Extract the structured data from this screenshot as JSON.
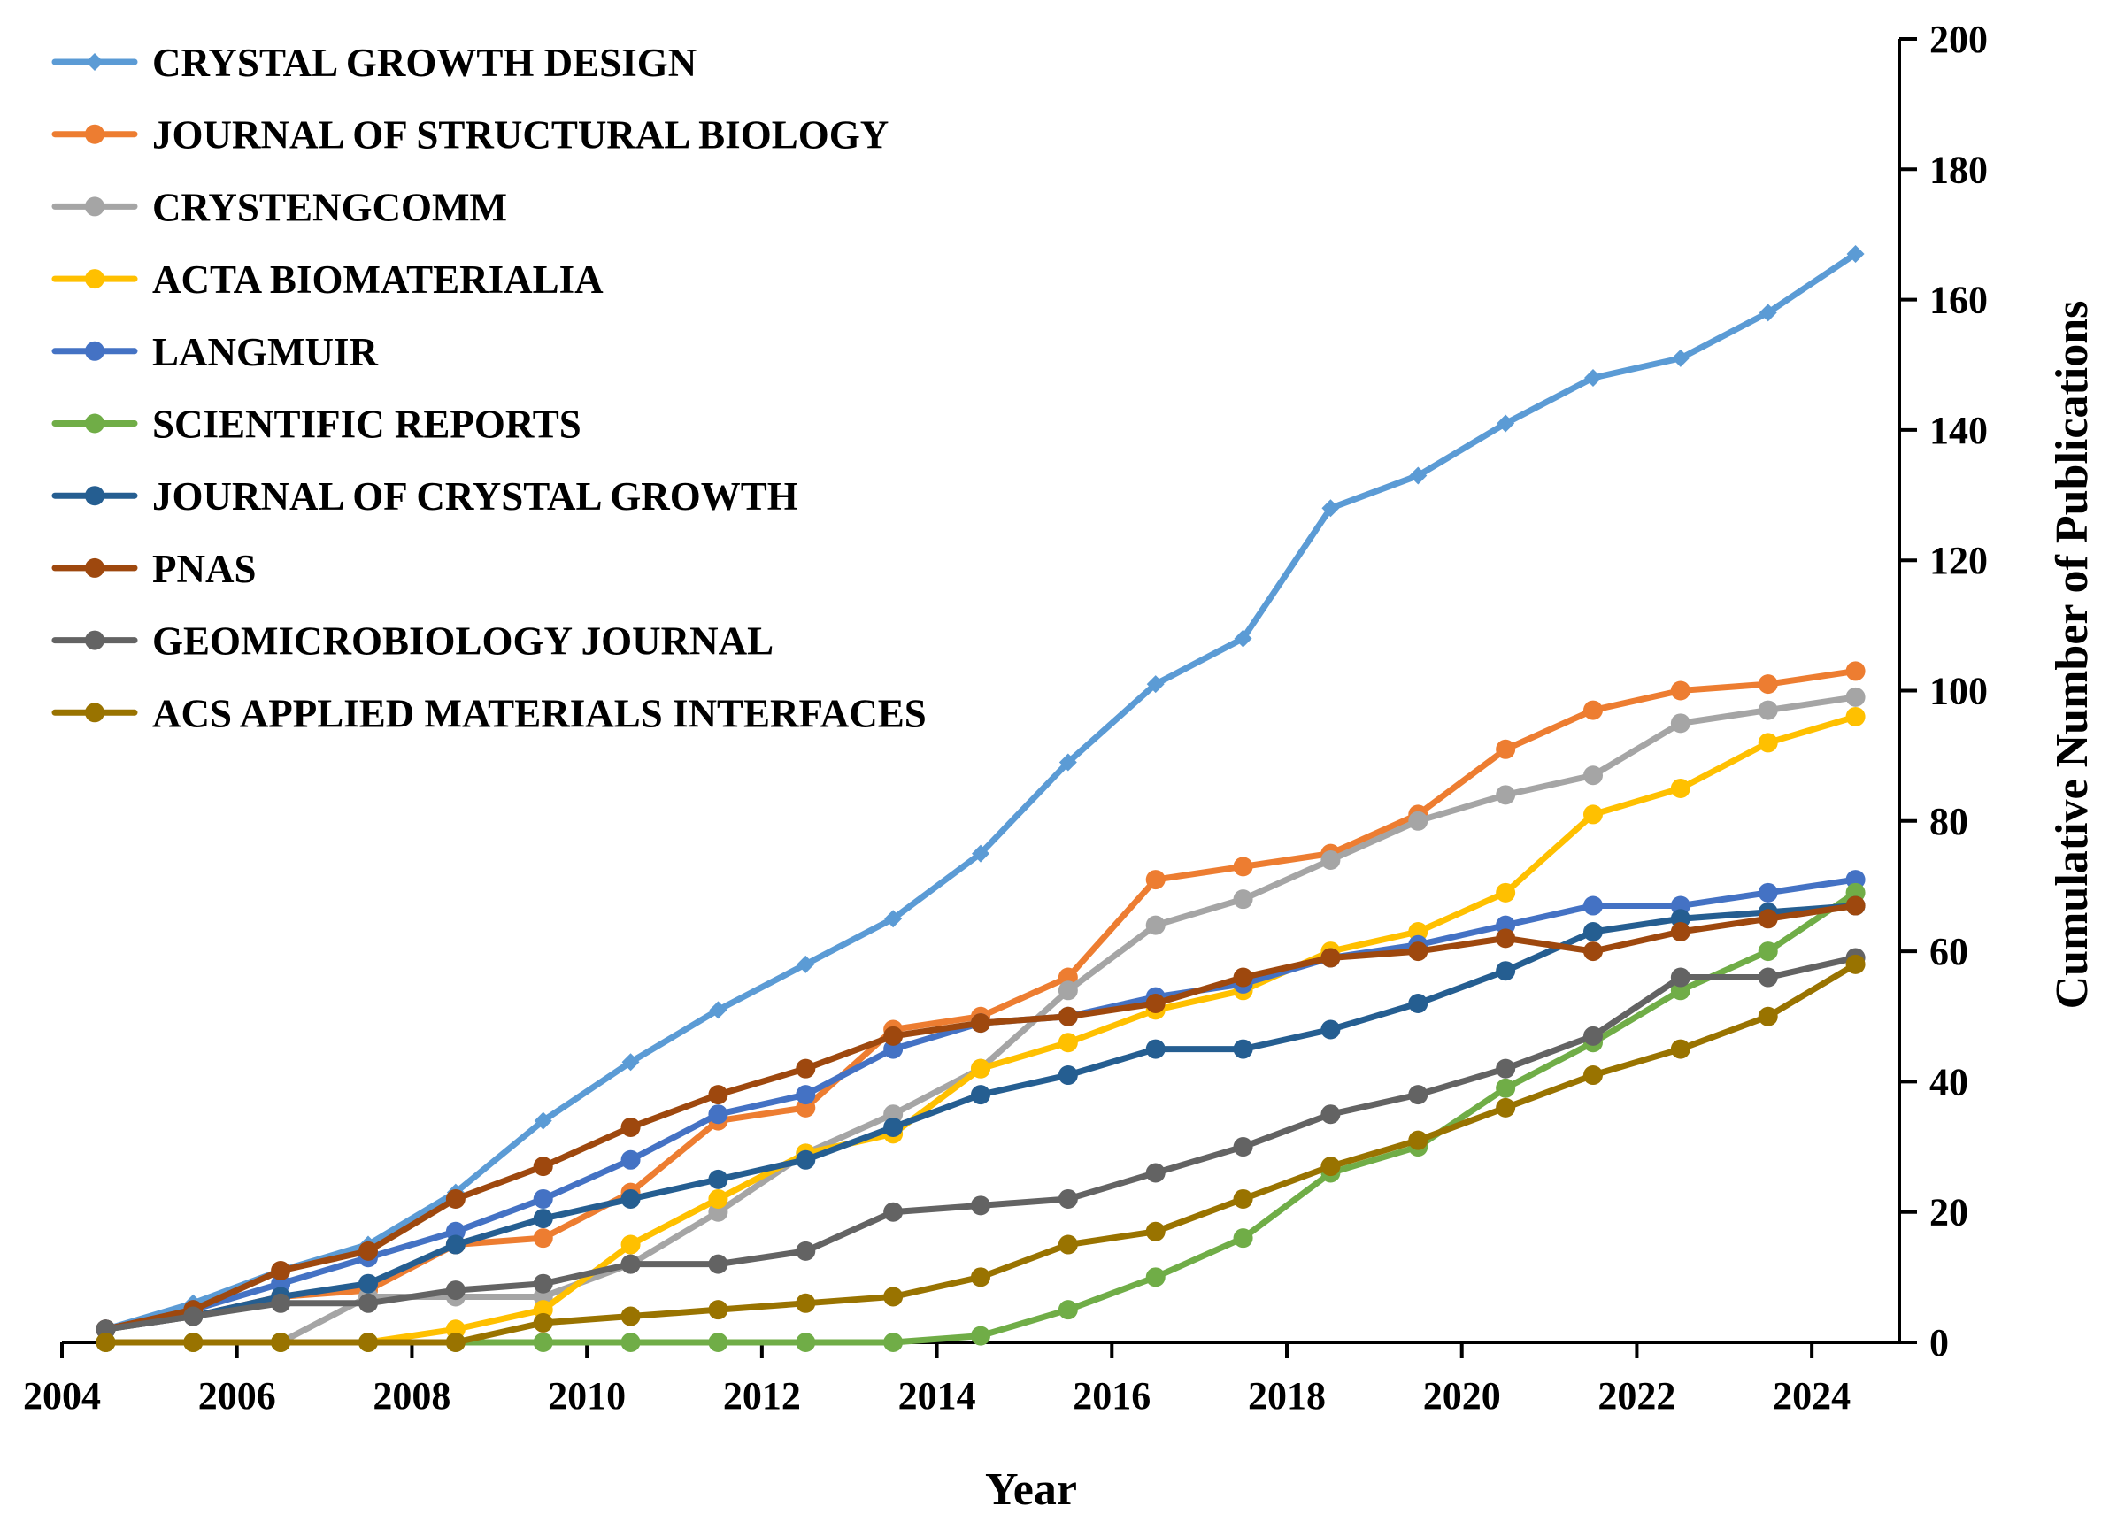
{
  "chart_data": {
    "type": "line",
    "title": "",
    "xlabel": "Year",
    "ylabel": "Cumulative Number of Publications",
    "y_axis_side": "right",
    "ylim": [
      0,
      200
    ],
    "yticks": [
      0,
      20,
      40,
      60,
      80,
      100,
      120,
      140,
      160,
      180,
      200
    ],
    "x_tick_labels": [
      "2004",
      "2006",
      "2008",
      "2010",
      "2012",
      "2014",
      "2016",
      "2018",
      "2020",
      "2022",
      "2024"
    ],
    "grid": false,
    "legend_position": "top-left",
    "x": [
      2004,
      2005,
      2006,
      2007,
      2008,
      2009,
      2010,
      2011,
      2012,
      2013,
      2014,
      2015,
      2016,
      2017,
      2018,
      2019,
      2020,
      2021,
      2022,
      2023,
      2024
    ],
    "series": [
      {
        "name": "CRYSTAL GROWTH DESIGN",
        "color": "#5B9BD5",
        "marker": "diamond",
        "values": [
          2,
          6,
          11,
          15,
          23,
          34,
          43,
          51,
          58,
          65,
          75,
          89,
          101,
          108,
          128,
          133,
          141,
          148,
          151,
          158,
          167
        ]
      },
      {
        "name": "JOURNAL OF STRUCTURAL BIOLOGY",
        "color": "#ED7D31",
        "marker": "circle",
        "values": [
          2,
          4,
          7,
          8,
          15,
          16,
          23,
          34,
          36,
          48,
          50,
          56,
          71,
          73,
          75,
          81,
          91,
          97,
          100,
          101,
          103
        ]
      },
      {
        "name": "CRYSTENGCOMM",
        "color": "#A5A5A5",
        "marker": "circle",
        "values": [
          0,
          0,
          0,
          7,
          7,
          7,
          12,
          20,
          29,
          35,
          42,
          54,
          64,
          68,
          74,
          80,
          84,
          87,
          95,
          97,
          99
        ]
      },
      {
        "name": "ACTA BIOMATERIALIA",
        "color": "#FFC000",
        "marker": "circle",
        "values": [
          0,
          0,
          0,
          0,
          2,
          5,
          15,
          22,
          29,
          32,
          42,
          46,
          51,
          54,
          60,
          63,
          69,
          81,
          85,
          92,
          96
        ]
      },
      {
        "name": "LANGMUIR",
        "color": "#4472C4",
        "marker": "circle",
        "values": [
          2,
          5,
          9,
          13,
          17,
          22,
          28,
          35,
          38,
          45,
          49,
          50,
          53,
          55,
          59,
          61,
          64,
          67,
          67,
          69,
          71
        ]
      },
      {
        "name": "SCIENTIFIC REPORTS",
        "color": "#70AD47",
        "marker": "circle",
        "values": [
          0,
          0,
          0,
          0,
          0,
          0,
          0,
          0,
          0,
          0,
          1,
          5,
          10,
          16,
          26,
          30,
          39,
          46,
          54,
          60,
          69
        ]
      },
      {
        "name": "JOURNAL OF CRYSTAL GROWTH",
        "color": "#255E91",
        "marker": "circle",
        "values": [
          2,
          4,
          7,
          9,
          15,
          19,
          22,
          25,
          28,
          33,
          38,
          41,
          45,
          45,
          48,
          52,
          57,
          63,
          65,
          66,
          67
        ]
      },
      {
        "name": "PNAS",
        "color": "#9E480E",
        "marker": "circle",
        "values": [
          2,
          5,
          11,
          14,
          22,
          27,
          33,
          38,
          42,
          47,
          49,
          50,
          52,
          56,
          59,
          60,
          62,
          60,
          63,
          65,
          67
        ]
      },
      {
        "name": "GEOMICROBIOLOGY JOURNAL",
        "color": "#636363",
        "marker": "circle",
        "values": [
          2,
          4,
          6,
          6,
          8,
          9,
          12,
          12,
          14,
          20,
          21,
          22,
          26,
          30,
          35,
          38,
          42,
          47,
          56,
          56,
          59
        ]
      },
      {
        "name": "ACS APPLIED MATERIALS INTERFACES",
        "color": "#997300",
        "marker": "circle",
        "values": [
          0,
          0,
          0,
          0,
          0,
          3,
          4,
          5,
          6,
          7,
          10,
          15,
          17,
          22,
          27,
          31,
          36,
          41,
          45,
          50,
          58
        ]
      }
    ]
  }
}
